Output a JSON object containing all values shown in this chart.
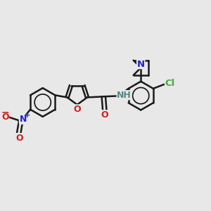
{
  "background_color": "#e8e8e8",
  "bond_color": "#1a1a1a",
  "N_color": "#2020cc",
  "O_color": "#cc2020",
  "Cl_color": "#44aa44",
  "H_color": "#558888",
  "figsize": [
    3.0,
    3.0
  ],
  "dpi": 100,
  "xlim": [
    -0.5,
    9.5
  ],
  "ylim": [
    2.0,
    8.5
  ]
}
